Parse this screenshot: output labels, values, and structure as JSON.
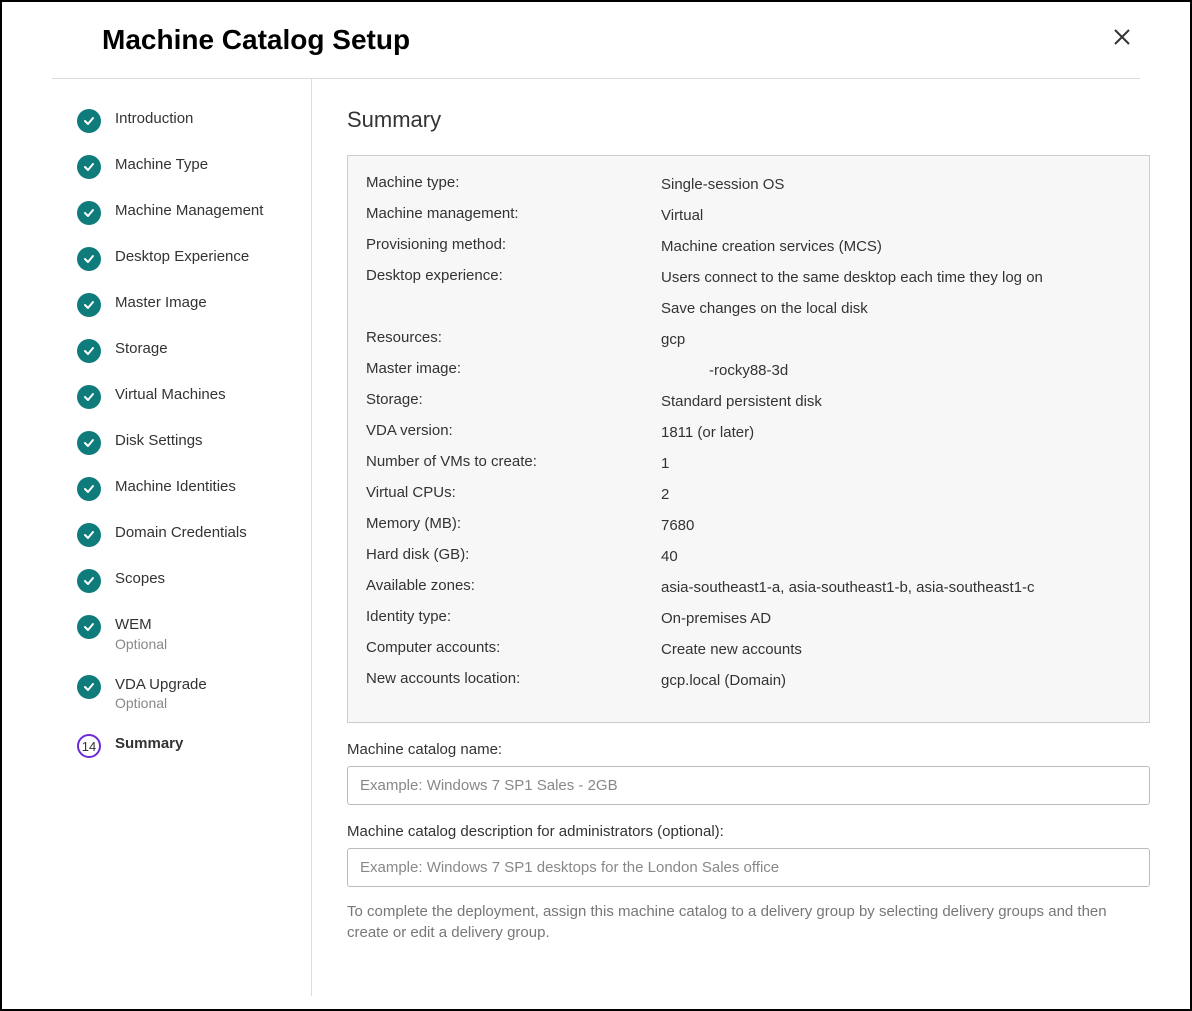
{
  "header": {
    "title": "Machine Catalog Setup"
  },
  "steps": [
    {
      "label": "Introduction",
      "status": "done"
    },
    {
      "label": "Machine Type",
      "status": "done"
    },
    {
      "label": "Machine Management",
      "status": "done"
    },
    {
      "label": "Desktop Experience",
      "status": "done"
    },
    {
      "label": "Master Image",
      "status": "done"
    },
    {
      "label": "Storage",
      "status": "done"
    },
    {
      "label": "Virtual Machines",
      "status": "done"
    },
    {
      "label": "Disk Settings",
      "status": "done"
    },
    {
      "label": "Machine Identities",
      "status": "done"
    },
    {
      "label": "Domain Credentials",
      "status": "done"
    },
    {
      "label": "Scopes",
      "status": "done"
    },
    {
      "label": "WEM",
      "optional": "Optional",
      "status": "done"
    },
    {
      "label": "VDA Upgrade",
      "optional": "Optional",
      "status": "done"
    },
    {
      "label": "Summary",
      "status": "current",
      "number": "14"
    }
  ],
  "main": {
    "heading": "Summary",
    "summary_rows": [
      {
        "label": "Machine type:",
        "value": "Single-session OS"
      },
      {
        "label": "Machine management:",
        "value": "Virtual"
      },
      {
        "label": "Provisioning method:",
        "value": "Machine creation services (MCS)"
      },
      {
        "label": "Desktop experience:",
        "value": "Users connect to the same desktop each time they log on"
      },
      {
        "label": "",
        "value": "Save changes on the local disk",
        "extra": true
      },
      {
        "label": "Resources:",
        "value": "gcp"
      },
      {
        "label": "Master image:",
        "value": "-rocky88-3d",
        "redacted_prefix": true
      },
      {
        "label": "Storage:",
        "value": "Standard persistent disk"
      },
      {
        "label": "VDA version:",
        "value": "1811 (or later)"
      },
      {
        "label": "Number of VMs to create:",
        "value": "1"
      },
      {
        "label": "Virtual CPUs:",
        "value": "2"
      },
      {
        "label": "Memory (MB):",
        "value": "7680"
      },
      {
        "label": "Hard disk (GB):",
        "value": "40"
      },
      {
        "label": "Available zones:",
        "value": "asia-southeast1-a, asia-southeast1-b, asia-southeast1-c"
      },
      {
        "label": "Identity type:",
        "value": "On-premises AD"
      },
      {
        "label": "Computer accounts:",
        "value": "Create new accounts"
      },
      {
        "label": "New accounts location:",
        "value": "gcp.local (Domain)"
      }
    ],
    "name_field": {
      "label": "Machine catalog name:",
      "placeholder": "Example: Windows 7 SP1 Sales - 2GB"
    },
    "desc_field": {
      "label": "Machine catalog description for administrators (optional):",
      "placeholder": "Example: Windows 7 SP1 desktops for the London Sales office"
    },
    "help_text": "To complete the deployment, assign this machine catalog to a delivery group by selecting delivery groups and then create or edit a delivery group."
  }
}
